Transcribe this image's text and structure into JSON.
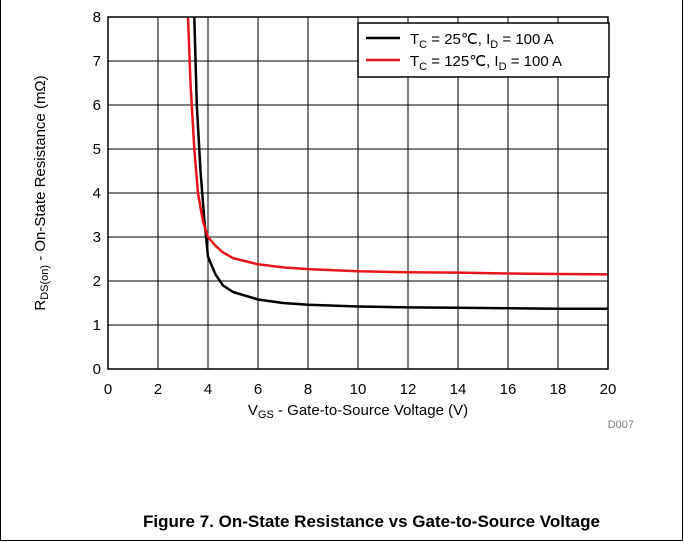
{
  "figure": {
    "caption": "Figure 7. On-State Resistance vs Gate-to-Source Voltage",
    "code": "D007"
  },
  "chart_data": {
    "type": "line",
    "xlabel": {
      "main": "V",
      "sub": "GS",
      "rest": " - Gate-to-Source Voltage (V)"
    },
    "ylabel": {
      "main": "R",
      "sub": "DS(on)",
      "rest": " - On-State Resistance (mΩ)"
    },
    "xlim": [
      0,
      20
    ],
    "ylim": [
      0,
      8
    ],
    "xticks": [
      0,
      2,
      4,
      6,
      8,
      10,
      12,
      14,
      16,
      18,
      20
    ],
    "yticks": [
      0,
      1,
      2,
      3,
      4,
      5,
      6,
      7,
      8
    ],
    "grid": true,
    "legend_position": "top-right",
    "series": [
      {
        "name": "T_C = 25℃, I_D = 100 A",
        "legend": {
          "t": "T",
          "tsub": "C",
          "mid": " = 25℃, I",
          "isub": "D",
          "end": " = 100 A"
        },
        "color": "#000000",
        "x": [
          3.45,
          3.55,
          3.7,
          3.85,
          4.0,
          4.3,
          4.6,
          5.0,
          6.0,
          7.0,
          8.0,
          10.0,
          12.0,
          14.0,
          16.0,
          18.0,
          20.0
        ],
        "y": [
          8.0,
          6.0,
          4.5,
          3.4,
          2.55,
          2.15,
          1.9,
          1.75,
          1.58,
          1.5,
          1.46,
          1.42,
          1.4,
          1.39,
          1.38,
          1.37,
          1.37
        ]
      },
      {
        "name": "T_C = 125℃, I_D = 100 A",
        "legend": {
          "t": "T",
          "tsub": "C",
          "mid": " = 125℃, I",
          "isub": "D",
          "end": " = 100 A"
        },
        "color": "#e8141c",
        "x": [
          3.2,
          3.3,
          3.45,
          3.6,
          3.8,
          4.0,
          4.3,
          4.6,
          5.0,
          6.0,
          7.0,
          8.0,
          10.0,
          12.0,
          14.0,
          16.0,
          18.0,
          20.0
        ],
        "y": [
          8.0,
          6.5,
          5.0,
          4.0,
          3.35,
          3.0,
          2.8,
          2.65,
          2.52,
          2.38,
          2.31,
          2.27,
          2.22,
          2.2,
          2.19,
          2.17,
          2.16,
          2.15
        ]
      }
    ]
  }
}
